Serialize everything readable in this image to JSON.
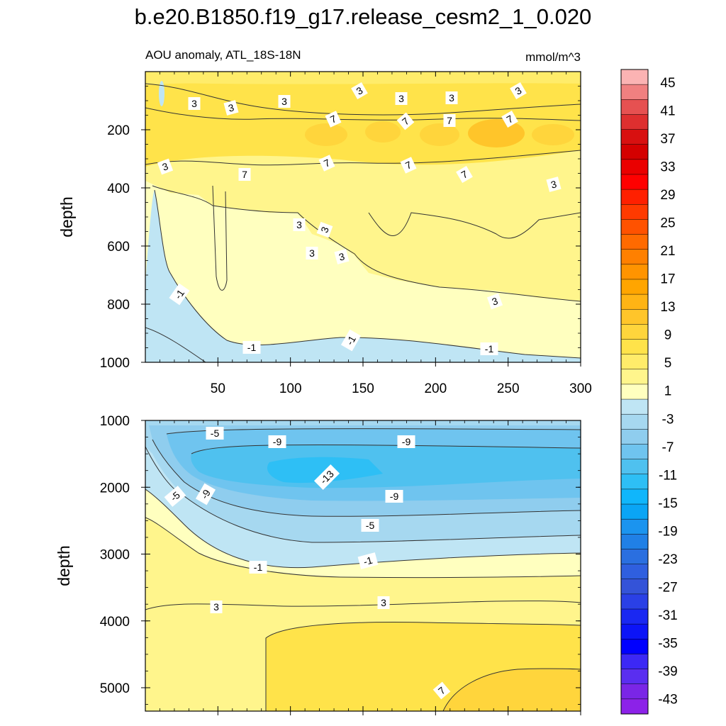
{
  "chart_data": {
    "type": "contour",
    "title": "b.e20.B1850.f19_g17.release_cesm2_1_0.020",
    "subtitle_left": "AOU anomaly, ATL_18S-18N",
    "subtitle_right": "mmol/m^3",
    "xlabel": "",
    "ylabel": "depth",
    "x_ticks": [
      "50",
      "100",
      "150",
      "200",
      "250",
      "300"
    ],
    "xlim": [
      0,
      300
    ],
    "panels": [
      {
        "name": "upper",
        "ylim": [
          0,
          1000
        ],
        "y_ticks": [
          "200",
          "400",
          "600",
          "800",
          "1000"
        ],
        "contour_labels": [
          "3",
          "3",
          "3",
          "3",
          "3",
          "3",
          "3",
          "7",
          "7",
          "7",
          "7",
          "3",
          "7",
          "7",
          "7",
          "7",
          "3",
          "3",
          "3",
          "3",
          "3",
          "-1",
          "3",
          "-1",
          "-1",
          "-1"
        ]
      },
      {
        "name": "lower",
        "ylim": [
          1000,
          5350
        ],
        "y_ticks": [
          "1000",
          "2000",
          "3000",
          "4000",
          "5000"
        ],
        "contour_labels": [
          "-5",
          "-9",
          "-9",
          "-13",
          "-9",
          "-5",
          "-9",
          "-5",
          "-1",
          "-1",
          "3",
          "3",
          "7"
        ]
      }
    ],
    "colorbar": {
      "labels": [
        "45",
        "41",
        "37",
        "33",
        "29",
        "25",
        "21",
        "17",
        "13",
        "9",
        "5",
        "1",
        "-3",
        "-7",
        "-11",
        "-15",
        "-19",
        "-23",
        "-27",
        "-31",
        "-35",
        "-39",
        "-43"
      ],
      "colors": [
        "#fbb3b3",
        "#f08080",
        "#e65151",
        "#de2f2f",
        "#d81010",
        "#d40000",
        "#ea0000",
        "#ff0000",
        "#ff2000",
        "#ff3a00",
        "#ff5200",
        "#ff6a00",
        "#ff8000",
        "#ff9400",
        "#ffa500",
        "#ffb414",
        "#ffc52a",
        "#ffd53c",
        "#ffe34a",
        "#ffec6a",
        "#fff58c",
        "#ffffbf",
        "#bfe5f4",
        "#a6d8f0",
        "#8fcdee",
        "#6fc4ef",
        "#4fc1ef",
        "#2ebff5",
        "#10b6fb",
        "#0aa5f5",
        "#1b94ef",
        "#2080e6",
        "#2a6fe0",
        "#2f5fdf",
        "#3453d8",
        "#2a40e6",
        "#1a28f2",
        "#0c14f7",
        "#0000ff",
        "#3c28f5",
        "#5a2ef0",
        "#7a26e6",
        "#8c22e8"
      ]
    }
  }
}
